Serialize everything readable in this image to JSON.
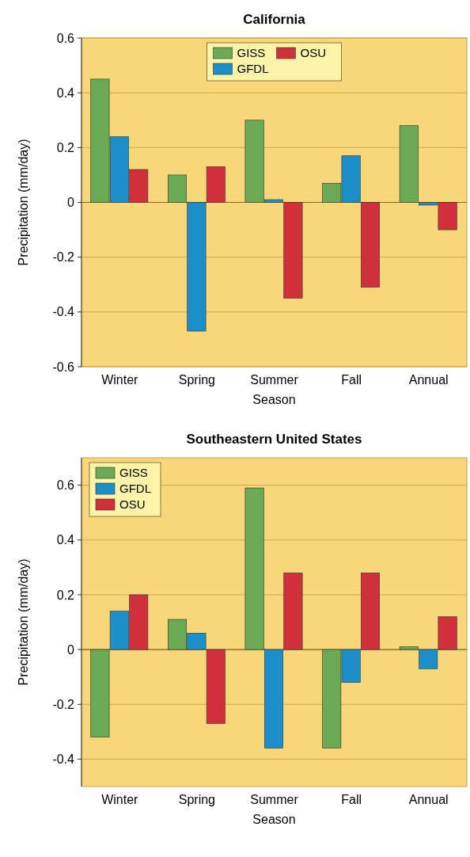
{
  "chart_data": [
    {
      "type": "bar",
      "title": "California",
      "xlabel": "Season",
      "ylabel": "Precipitation (mm/day)",
      "categories": [
        "Winter",
        "Spring",
        "Summer",
        "Fall",
        "Annual"
      ],
      "series": [
        {
          "name": "GISS",
          "color": "#6aaa52",
          "values": [
            0.45,
            0.1,
            0.3,
            0.07,
            0.28
          ]
        },
        {
          "name": "GFDL",
          "color": "#1c8fc8",
          "values": [
            0.24,
            -0.47,
            0.01,
            0.17,
            -0.01
          ]
        },
        {
          "name": "OSU",
          "color": "#d0303c",
          "values": [
            0.12,
            0.13,
            -0.35,
            -0.31,
            -0.1
          ]
        }
      ],
      "ref_lines": [
        {
          "axis": "y",
          "value": 0
        }
      ],
      "ylim": [
        -0.6,
        0.6
      ],
      "yticks": [
        -0.6,
        -0.4,
        -0.2,
        0,
        0.2,
        0.4,
        0.6
      ],
      "grid": "y",
      "legend": "top"
    },
    {
      "type": "bar",
      "title": "Southeastern United States",
      "xlabel": "Season",
      "ylabel": "Precipitation (mm/day)",
      "categories": [
        "Winter",
        "Spring",
        "Summer",
        "Fall",
        "Annual"
      ],
      "series": [
        {
          "name": "GISS",
          "color": "#6aaa52",
          "values": [
            -0.32,
            0.11,
            0.59,
            -0.36,
            0.01
          ]
        },
        {
          "name": "GFDL",
          "color": "#1c8fc8",
          "values": [
            0.14,
            0.06,
            -0.36,
            -0.12,
            -0.07
          ]
        },
        {
          "name": "OSU",
          "color": "#d0303c",
          "values": [
            0.2,
            -0.27,
            0.28,
            0.28,
            0.12
          ]
        }
      ],
      "ref_lines": [
        {
          "axis": "y",
          "value": 0
        }
      ],
      "ylim": [
        -0.5,
        0.7
      ],
      "yticks": [
        -0.4,
        -0.2,
        0,
        0.2,
        0.4,
        0.6
      ],
      "grid": "y",
      "legend": "top left"
    }
  ]
}
